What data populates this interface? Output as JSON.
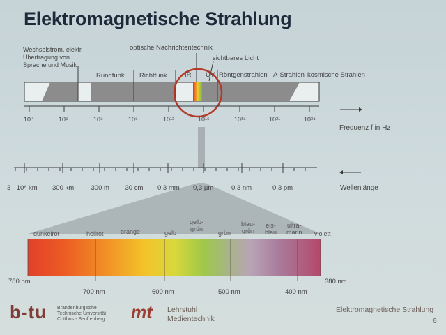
{
  "title": "Elektromagnetische Strahlung",
  "upper_labels": {
    "wechselstrom": "Wechselstrom, elektr.\nÜbertragung von\nSprache und Musik",
    "optische": "optische Nachrichtentechnik",
    "sichtbares": "sichtbares Licht",
    "rundfunk": "Rundfunk",
    "richtfunk": "Richtfunk",
    "ir": "IR",
    "uv": "UV",
    "roentgen": "Röntgenstrahlen",
    "gamma": "A-Strahlen",
    "kosmische": "kosmische Strahlen"
  },
  "frequency_ticks": [
    "10⁰",
    "10⁵",
    "10⁸",
    "10⁹",
    "10¹²",
    "10¹⁵",
    "10¹⁸",
    "10²¹",
    "10²⁴"
  ],
  "frequency_label": "Frequenz f in Hz",
  "wavelength_ticks": [
    "3 · 10⁸ km",
    "300 km",
    "300 m",
    "30 cm",
    "0,3 mm",
    "0,3 µm",
    "0,3 nm",
    "0,3 pm"
  ],
  "wavelength_label": "Wellenlänge",
  "colors": [
    "dunkelrot",
    "hellrot",
    "orange",
    "gelb",
    "gelb-\ngrün",
    "grün",
    "blau-\ngrün",
    "eis-\nblau",
    "ultra-\nmarin",
    "violett"
  ],
  "nm_labels": {
    "left": "780 nm",
    "right": "380 nm",
    "ticks": [
      "700 nm",
      "600 nm",
      "500 nm",
      "400 nm"
    ]
  },
  "footer": {
    "btu_logo": "b-tu",
    "btu_text": "Brandenburgische\nTechnische Universität\nCottbus - Senftenberg",
    "mt_logo": "mt",
    "lehrstuhl": "Lehrstuhl\nMedientechnik",
    "right_title": "Elektromagnetische Strahlung",
    "page": "6"
  }
}
